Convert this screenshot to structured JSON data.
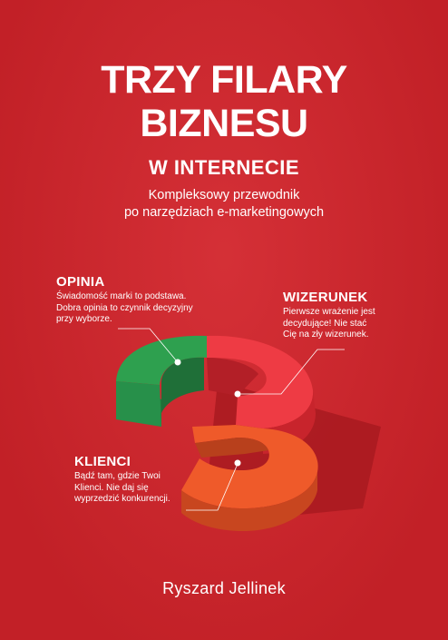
{
  "cover": {
    "title_line1": "TRZY FILARY",
    "title_line2": "BIZNESU",
    "title_line3": "W INTERNECIE",
    "subtitle_line1": "Kompleksowy przewodnik",
    "subtitle_line2": "po narzędziach e-marketingowych",
    "author": "Ryszard Jellinek",
    "colors": {
      "background": "#d2232a",
      "green": "#2ea04f",
      "red_light": "#ee3b44",
      "orange": "#ef5a2a"
    }
  },
  "pillars": {
    "opinia": {
      "heading": "OPINIA",
      "line1": "Świadomość marki to podstawa.",
      "line2": "Dobra opinia to czynnik decyzyjny",
      "line3": "przy wyborze."
    },
    "wizerunek": {
      "heading": "WIZERUNEK",
      "line1": "Pierwsze wrażenie jest",
      "line2": "decydujące! Nie stać",
      "line3": "Cię na zły wizerunek."
    },
    "klienci": {
      "heading": "KLIENCI",
      "line1": "Bądź tam, gdzie Twoi",
      "line2": "Klienci. Nie daj się",
      "line3": "wyprzedzić konkurencji."
    }
  }
}
